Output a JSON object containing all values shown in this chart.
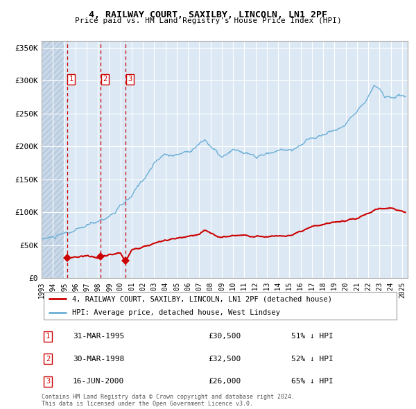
{
  "title": "4, RAILWAY COURT, SAXILBY, LINCOLN, LN1 2PF",
  "subtitle": "Price paid vs. HM Land Registry's House Price Index (HPI)",
  "footer": "Contains HM Land Registry data © Crown copyright and database right 2024.\nThis data is licensed under the Open Government Licence v3.0.",
  "legend_line1": "4, RAILWAY COURT, SAXILBY, LINCOLN, LN1 2PF (detached house)",
  "legend_line2": "HPI: Average price, detached house, West Lindsey",
  "hpi_color": "#6baed6",
  "price_color": "#cc0000",
  "sale_marker_color": "#cc0000",
  "background_plot": "#dce9f5",
  "background_hatch": "#c8d8e8",
  "grid_color": "#ffffff",
  "sale_points": [
    {
      "date_num": 1995.25,
      "price": 30500,
      "label": "1",
      "date_str": "31-MAR-1995",
      "price_str": "£30,500",
      "pct": "51% ↓ HPI"
    },
    {
      "date_num": 1998.25,
      "price": 32500,
      "label": "2",
      "date_str": "30-MAR-1998",
      "price_str": "£32,500",
      "pct": "52% ↓ HPI"
    },
    {
      "date_num": 2000.46,
      "price": 26000,
      "label": "3",
      "date_str": "16-JUN-2000",
      "price_str": "£26,000",
      "pct": "65% ↓ HPI"
    }
  ],
  "vline_color": "#cc0000",
  "hatch_end": 1995.0,
  "ylim": [
    0,
    360000
  ],
  "yticks": [
    0,
    50000,
    100000,
    150000,
    200000,
    250000,
    300000,
    350000
  ],
  "ytick_labels": [
    "£0",
    "£50K",
    "£100K",
    "£150K",
    "£200K",
    "£250K",
    "£300K",
    "£350K"
  ],
  "xlim_start": 1993.0,
  "xlim_end": 2025.5,
  "xticks": [
    1993,
    1994,
    1995,
    1996,
    1997,
    1998,
    1999,
    2000,
    2001,
    2002,
    2003,
    2004,
    2005,
    2006,
    2007,
    2008,
    2009,
    2010,
    2011,
    2012,
    2013,
    2014,
    2015,
    2016,
    2017,
    2018,
    2019,
    2020,
    2021,
    2022,
    2023,
    2024,
    2025
  ]
}
